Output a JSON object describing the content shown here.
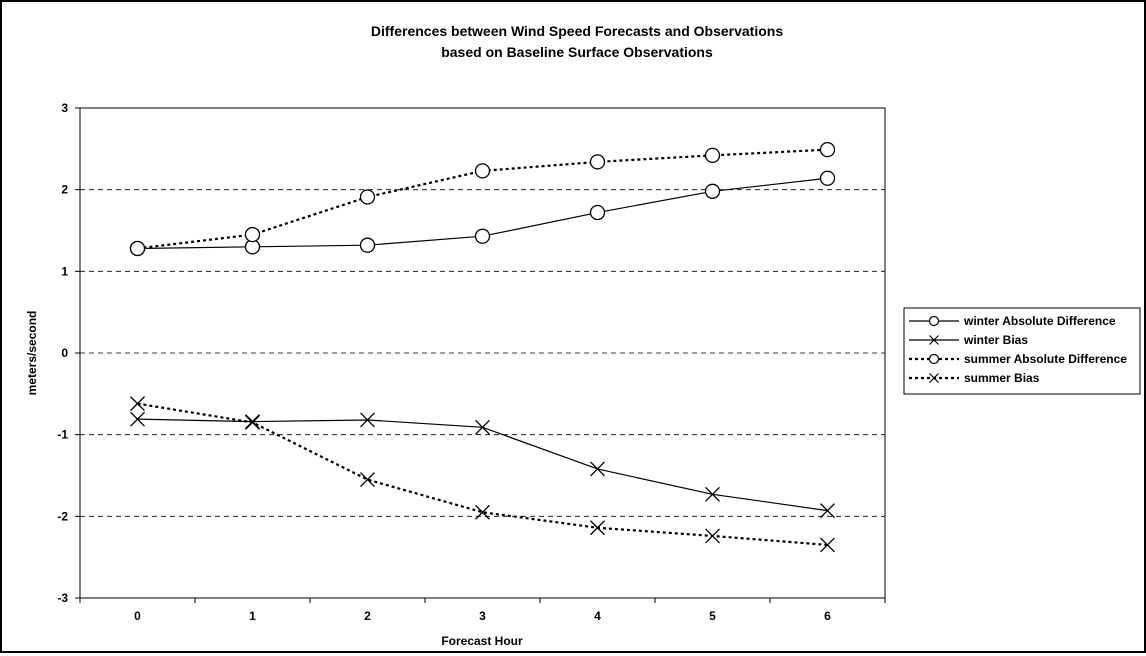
{
  "chart_data": {
    "type": "line",
    "title": "Differences between Wind Speed Forecasts and Observations",
    "subtitle": "based on Baseline Surface Observations",
    "xlabel": "Forecast Hour",
    "ylabel": "meters/second",
    "x": [
      0,
      1,
      2,
      3,
      4,
      5,
      6
    ],
    "ylim": [
      -3,
      3
    ],
    "yticks": [
      -3,
      -2,
      -1,
      0,
      1,
      2,
      3
    ],
    "grid": "horizontal-dashed",
    "legend_position": "right",
    "series": [
      {
        "name": "winter Absolute Difference",
        "values": [
          1.28,
          1.3,
          1.32,
          1.43,
          1.72,
          1.98,
          2.14
        ],
        "line": "solid",
        "marker": "circle"
      },
      {
        "name": "winter Bias",
        "values": [
          -0.81,
          -0.84,
          -0.82,
          -0.91,
          -1.42,
          -1.73,
          -1.93
        ],
        "line": "solid",
        "marker": "x"
      },
      {
        "name": "summer Absolute Difference",
        "values": [
          1.28,
          1.45,
          1.91,
          2.23,
          2.34,
          2.42,
          2.49
        ],
        "line": "dotted",
        "marker": "circle"
      },
      {
        "name": "summer Bias",
        "values": [
          -0.62,
          -0.85,
          -1.55,
          -1.95,
          -2.14,
          -2.24,
          -2.35
        ],
        "line": "dotted",
        "marker": "x"
      }
    ],
    "colors": {
      "line": "#000000",
      "grid": "#000000",
      "background": "#ffffff"
    }
  }
}
